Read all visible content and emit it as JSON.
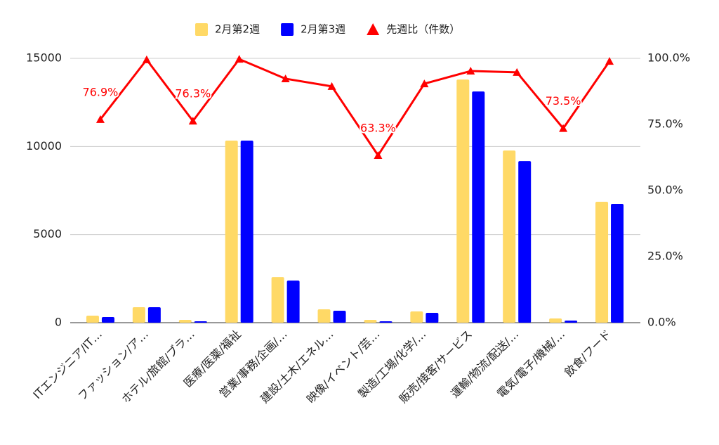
{
  "chart_data": {
    "type": "bar",
    "categories": [
      "ITエンジニア/IT…",
      "ファッション/ア…",
      "ホテル/旅館/ブラ…",
      "医療/医薬/福祉",
      "営業/事務/企画/…",
      "建設/土木/エネル…",
      "映像/イベント/芸…",
      "製造/工場/化学/…",
      "販売/接客/サービス",
      "運輸/物流/配送/…",
      "電気/電子/機械/…",
      "飲食/フード"
    ],
    "series": [
      {
        "name": "2月第2週",
        "color": "#ffd966",
        "values": [
          400,
          880,
          160,
          10330,
          2590,
          760,
          160,
          640,
          13800,
          9770,
          240,
          6860
        ]
      },
      {
        "name": "2月第3週",
        "color": "#0000ff",
        "values": [
          320,
          880,
          80,
          10330,
          2390,
          680,
          80,
          560,
          13120,
          9170,
          120,
          6740
        ]
      },
      {
        "name": "先週比（件数）",
        "color": "#ff0000",
        "type": "line",
        "axis": "y2",
        "marker": "triangle",
        "values": [
          76.9,
          99.5,
          76.3,
          99.7,
          92.3,
          89.4,
          63.3,
          90.4,
          95.2,
          94.7,
          73.5,
          98.9
        ],
        "value_labels": [
          "76.9%",
          null,
          "76.3%",
          null,
          null,
          null,
          "63.3%",
          null,
          null,
          null,
          "73.5%",
          null
        ]
      }
    ],
    "ylim": [
      0,
      15000
    ],
    "yticks": [
      0,
      5000,
      10000,
      15000
    ],
    "y2lim": [
      0,
      100
    ],
    "y2ticks": [
      {
        "value": 0,
        "label": "0.0%"
      },
      {
        "value": 25,
        "label": "25.0%"
      },
      {
        "value": 50,
        "label": "50.0%"
      },
      {
        "value": 75,
        "label": "75.0%"
      },
      {
        "value": 100,
        "label": "100.0%"
      }
    ],
    "grid": true,
    "legend": "top"
  }
}
